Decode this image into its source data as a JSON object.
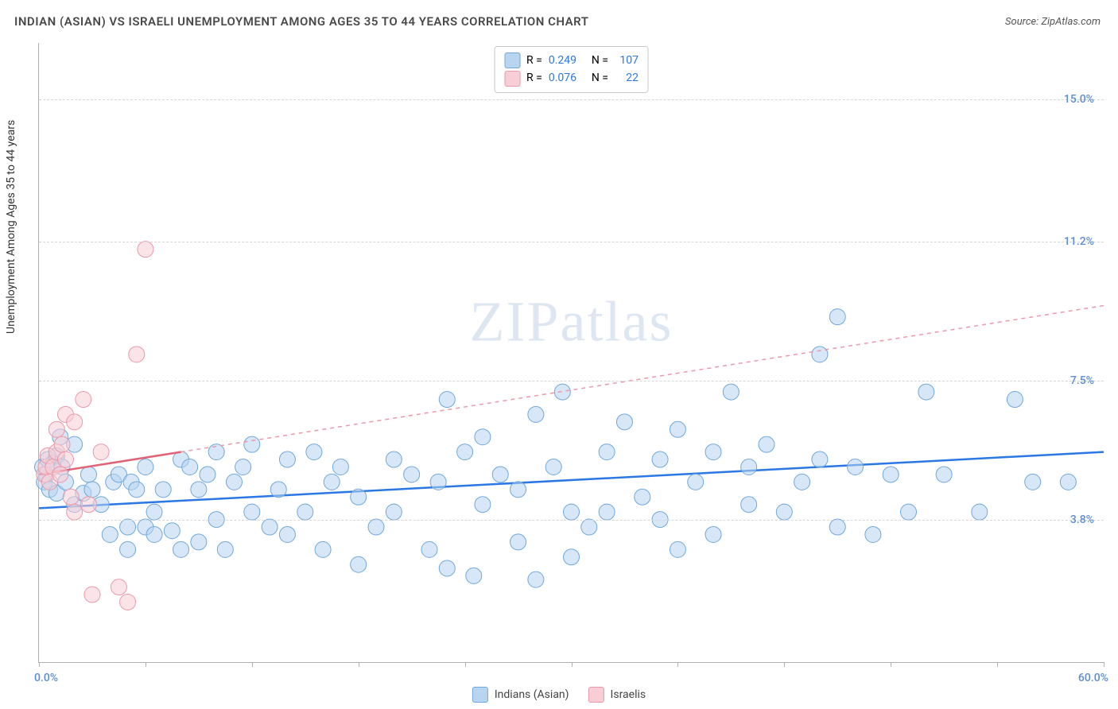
{
  "title": "INDIAN (ASIAN) VS ISRAELI UNEMPLOYMENT AMONG AGES 35 TO 44 YEARS CORRELATION CHART",
  "source_label": "Source:",
  "source_name": "ZipAtlas.com",
  "ylabel": "Unemployment Among Ages 35 to 44 years",
  "watermark_a": "ZIP",
  "watermark_b": "atlas",
  "chart": {
    "type": "scatter",
    "xlim": [
      0,
      60
    ],
    "ylim": [
      0,
      16.5
    ],
    "grid_color": "#d6d6d6",
    "background_color": "#ffffff",
    "x_axis": {
      "min_label": "0.0%",
      "max_label": "60.0%",
      "tick_positions": [
        0,
        6,
        12,
        18,
        24,
        30,
        36,
        42,
        48,
        54,
        60
      ]
    },
    "y_axis": {
      "ticks": [
        {
          "value": 3.8,
          "label": "3.8%"
        },
        {
          "value": 7.5,
          "label": "7.5%"
        },
        {
          "value": 11.2,
          "label": "11.2%"
        },
        {
          "value": 15.0,
          "label": "15.0%"
        }
      ]
    },
    "series": [
      {
        "name": "Indians (Asian)",
        "color_fill": "#b8d4f0",
        "color_stroke": "#6fa8dc",
        "marker_radius": 10,
        "fill_opacity": 0.55,
        "R": "0.249",
        "N": "107",
        "trend": {
          "x1": 0,
          "y1": 4.1,
          "x2": 60,
          "y2": 5.6,
          "stroke": "#2b78e4",
          "width": 2.5,
          "dash": "none"
        },
        "extrapolate": null,
        "points": [
          [
            0.2,
            5.2
          ],
          [
            0.3,
            4.8
          ],
          [
            0.4,
            5.0
          ],
          [
            0.5,
            5.4
          ],
          [
            0.6,
            4.6
          ],
          [
            0.8,
            5.3
          ],
          [
            1.0,
            4.5
          ],
          [
            1.0,
            5.5
          ],
          [
            1.2,
            6.0
          ],
          [
            1.3,
            5.2
          ],
          [
            1.5,
            4.8
          ],
          [
            2.0,
            4.2
          ],
          [
            2.0,
            5.8
          ],
          [
            2.5,
            4.5
          ],
          [
            2.8,
            5.0
          ],
          [
            3.0,
            4.6
          ],
          [
            3.5,
            4.2
          ],
          [
            4.0,
            3.4
          ],
          [
            4.2,
            4.8
          ],
          [
            4.5,
            5.0
          ],
          [
            5.0,
            3.6
          ],
          [
            5.0,
            3.0
          ],
          [
            5.2,
            4.8
          ],
          [
            5.5,
            4.6
          ],
          [
            6.0,
            5.2
          ],
          [
            6.0,
            3.6
          ],
          [
            6.5,
            4.0
          ],
          [
            6.5,
            3.4
          ],
          [
            7.0,
            4.6
          ],
          [
            7.5,
            3.5
          ],
          [
            8.0,
            5.4
          ],
          [
            8.0,
            3.0
          ],
          [
            8.5,
            5.2
          ],
          [
            9.0,
            3.2
          ],
          [
            9.0,
            4.6
          ],
          [
            9.5,
            5.0
          ],
          [
            10.0,
            3.8
          ],
          [
            10.0,
            5.6
          ],
          [
            10.5,
            3.0
          ],
          [
            11.0,
            4.8
          ],
          [
            11.5,
            5.2
          ],
          [
            12.0,
            4.0
          ],
          [
            12.0,
            5.8
          ],
          [
            13.0,
            3.6
          ],
          [
            13.5,
            4.6
          ],
          [
            14.0,
            3.4
          ],
          [
            14.0,
            5.4
          ],
          [
            15.0,
            4.0
          ],
          [
            15.5,
            5.6
          ],
          [
            16.0,
            3.0
          ],
          [
            16.5,
            4.8
          ],
          [
            17.0,
            5.2
          ],
          [
            18.0,
            2.6
          ],
          [
            18.0,
            4.4
          ],
          [
            19.0,
            3.6
          ],
          [
            20.0,
            5.4
          ],
          [
            20.0,
            4.0
          ],
          [
            21.0,
            5.0
          ],
          [
            22.0,
            3.0
          ],
          [
            22.5,
            4.8
          ],
          [
            23.0,
            2.5
          ],
          [
            23.0,
            7.0
          ],
          [
            24.0,
            5.6
          ],
          [
            24.5,
            2.3
          ],
          [
            25.0,
            4.2
          ],
          [
            25.0,
            6.0
          ],
          [
            26.0,
            5.0
          ],
          [
            27.0,
            3.2
          ],
          [
            27.0,
            4.6
          ],
          [
            28.0,
            6.6
          ],
          [
            28.0,
            2.2
          ],
          [
            29.0,
            5.2
          ],
          [
            29.5,
            7.2
          ],
          [
            30.0,
            4.0
          ],
          [
            30.0,
            2.8
          ],
          [
            31.0,
            3.6
          ],
          [
            32.0,
            5.6
          ],
          [
            32.0,
            4.0
          ],
          [
            33.0,
            6.4
          ],
          [
            34.0,
            4.4
          ],
          [
            35.0,
            5.4
          ],
          [
            35.0,
            3.8
          ],
          [
            36.0,
            6.2
          ],
          [
            36.0,
            3.0
          ],
          [
            37.0,
            4.8
          ],
          [
            38.0,
            5.6
          ],
          [
            38.0,
            3.4
          ],
          [
            39.0,
            7.2
          ],
          [
            40.0,
            4.2
          ],
          [
            40.0,
            5.2
          ],
          [
            41.0,
            5.8
          ],
          [
            42.0,
            4.0
          ],
          [
            43.0,
            4.8
          ],
          [
            44.0,
            5.4
          ],
          [
            44.0,
            8.2
          ],
          [
            45.0,
            3.6
          ],
          [
            45.0,
            9.2
          ],
          [
            46.0,
            5.2
          ],
          [
            47.0,
            3.4
          ],
          [
            48.0,
            5.0
          ],
          [
            49.0,
            4.0
          ],
          [
            50.0,
            7.2
          ],
          [
            51.0,
            5.0
          ],
          [
            53.0,
            4.0
          ],
          [
            55.0,
            7.0
          ],
          [
            56.0,
            4.8
          ],
          [
            58.0,
            4.8
          ]
        ]
      },
      {
        "name": "Israelis",
        "color_fill": "#f7cdd6",
        "color_stroke": "#ec98aa",
        "marker_radius": 10,
        "fill_opacity": 0.55,
        "R": "0.076",
        "N": "22",
        "trend": {
          "x1": 0,
          "y1": 5.0,
          "x2": 8,
          "y2": 5.6,
          "stroke": "#e06377",
          "width": 2.5,
          "dash": "none"
        },
        "extrapolate": {
          "x1": 8,
          "y1": 5.6,
          "x2": 60,
          "y2": 9.5,
          "stroke": "#ec98aa",
          "width": 1.5,
          "dash": "5,5"
        },
        "points": [
          [
            0.3,
            5.0
          ],
          [
            0.4,
            5.2
          ],
          [
            0.5,
            5.5
          ],
          [
            0.6,
            4.8
          ],
          [
            0.8,
            5.2
          ],
          [
            1.0,
            6.2
          ],
          [
            1.0,
            5.6
          ],
          [
            1.2,
            5.0
          ],
          [
            1.3,
            5.8
          ],
          [
            1.5,
            5.4
          ],
          [
            1.5,
            6.6
          ],
          [
            1.8,
            4.4
          ],
          [
            2.0,
            6.4
          ],
          [
            2.0,
            4.0
          ],
          [
            2.5,
            7.0
          ],
          [
            2.8,
            4.2
          ],
          [
            3.0,
            1.8
          ],
          [
            3.5,
            5.6
          ],
          [
            4.5,
            2.0
          ],
          [
            5.0,
            1.6
          ],
          [
            5.5,
            8.2
          ],
          [
            6.0,
            11.0
          ]
        ]
      }
    ],
    "stats_legend": {
      "label_R": "R =",
      "label_N": "N =",
      "value_color": "#2b78e4"
    },
    "bottom_legend_labels": [
      "Indians (Asian)",
      "Israelis"
    ]
  }
}
